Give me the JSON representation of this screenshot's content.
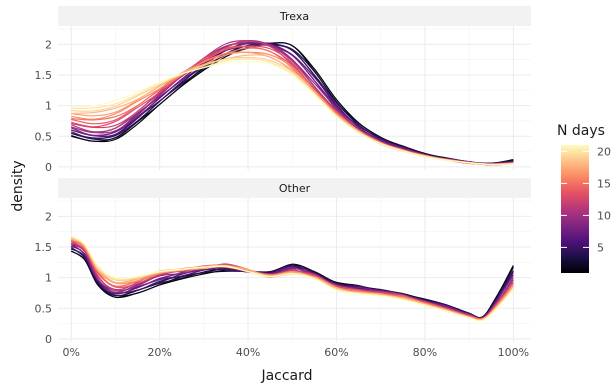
{
  "chart_data": {
    "type": "line",
    "xlabel": "Jaccard",
    "ylabel": "density",
    "x_ticks": [
      "0%",
      "20%",
      "40%",
      "60%",
      "80%",
      "100%"
    ],
    "x_tick_values": [
      0,
      20,
      40,
      60,
      80,
      100
    ],
    "xlim": [
      -3,
      104
    ],
    "ylim": [
      -0.05,
      2.3
    ],
    "y_ticks": [
      "0",
      "0.5",
      "1",
      "1.5",
      "2"
    ],
    "y_tick_values": [
      0,
      0.5,
      1,
      1.5,
      2
    ],
    "grid": true,
    "legend": {
      "title": "N days",
      "ticks": [
        "5",
        "10",
        "15",
        "20"
      ],
      "tick_values": [
        5,
        10,
        15,
        20
      ],
      "range": [
        1,
        21
      ],
      "position": "right",
      "colors": [
        "#000004",
        "#1c1044",
        "#4f127b",
        "#812581",
        "#b5367a",
        "#e55064",
        "#fb8761",
        "#fec287",
        "#fcfdbf"
      ]
    },
    "panels": [
      {
        "strip": "Trexa",
        "x": [
          0,
          5,
          10,
          15,
          20,
          25,
          30,
          35,
          40,
          45,
          50,
          55,
          60,
          65,
          70,
          75,
          80,
          85,
          90,
          95,
          100
        ],
        "base": [
          0.68,
          0.58,
          0.64,
          0.9,
          1.2,
          1.5,
          1.78,
          2.0,
          2.06,
          1.98,
          1.72,
          1.3,
          0.9,
          0.6,
          0.4,
          0.28,
          0.18,
          0.12,
          0.07,
          0.04,
          0.06
        ],
        "extremes": {
          "n1": [
            0.5,
            0.42,
            0.45,
            0.7,
            1.02,
            1.32,
            1.58,
            1.8,
            1.95,
            2.02,
            1.98,
            1.6,
            1.1,
            0.72,
            0.48,
            0.34,
            0.22,
            0.14,
            0.08,
            0.06,
            0.12
          ],
          "n21": [
            0.98,
            1.0,
            1.08,
            1.22,
            1.38,
            1.52,
            1.62,
            1.7,
            1.72,
            1.68,
            1.5,
            1.18,
            0.82,
            0.56,
            0.38,
            0.26,
            0.17,
            0.11,
            0.07,
            0.04,
            0.05
          ]
        }
      },
      {
        "strip": "Other",
        "x": [
          0,
          3,
          6,
          10,
          15,
          20,
          25,
          30,
          35,
          40,
          45,
          50,
          55,
          60,
          65,
          70,
          75,
          80,
          85,
          90,
          93,
          96,
          100
        ],
        "base": [
          1.58,
          1.45,
          1.02,
          0.8,
          0.9,
          1.05,
          1.12,
          1.18,
          1.2,
          1.12,
          1.04,
          1.12,
          1.02,
          0.86,
          0.8,
          0.76,
          0.7,
          0.6,
          0.5,
          0.38,
          0.33,
          0.55,
          0.95
        ],
        "extremes": {
          "n1": [
            1.43,
            1.3,
            0.88,
            0.68,
            0.75,
            0.88,
            0.98,
            1.06,
            1.12,
            1.1,
            1.08,
            1.22,
            1.1,
            0.92,
            0.86,
            0.8,
            0.74,
            0.64,
            0.55,
            0.42,
            0.36,
            0.66,
            1.2
          ],
          "n21": [
            1.68,
            1.55,
            1.2,
            1.0,
            1.02,
            1.1,
            1.14,
            1.17,
            1.18,
            1.1,
            1.02,
            1.06,
            0.98,
            0.8,
            0.74,
            0.7,
            0.64,
            0.55,
            0.45,
            0.34,
            0.3,
            0.48,
            0.8
          ]
        }
      }
    ]
  }
}
